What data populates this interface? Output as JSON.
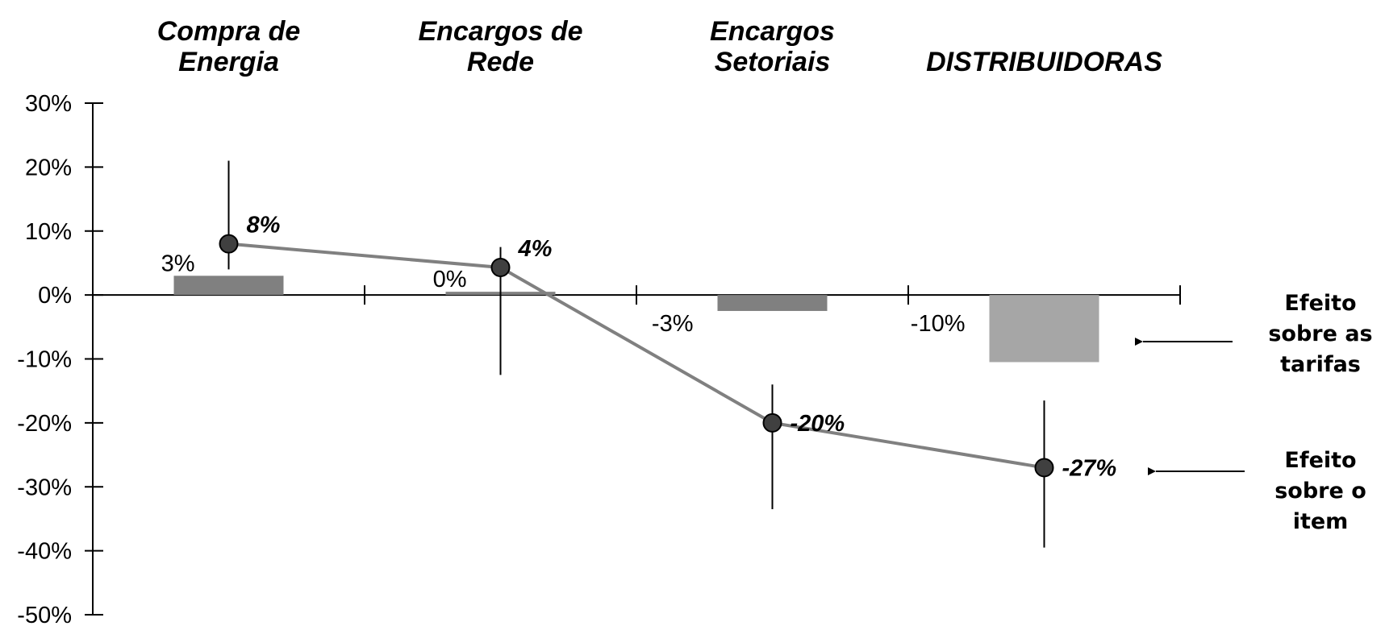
{
  "chart_data": {
    "type": "bar",
    "categories": [
      "Compra de Energia",
      "Encargos de Rede",
      "Encargos Setoriais",
      "DISTRIBUIDORAS"
    ],
    "category_label_lines": [
      [
        "Compra de",
        "Energia"
      ],
      [
        "Encargos de",
        "Rede"
      ],
      [
        "Encargos",
        "Setoriais"
      ],
      [
        "DISTRIBUIDORAS"
      ]
    ],
    "series": [
      {
        "kind": "bar",
        "values": [
          3,
          0.5,
          -2.5,
          -10.5
        ],
        "data_labels": [
          "3%",
          "0%",
          "-3%",
          "-10%"
        ],
        "colors": [
          "#808080",
          "#808080",
          "#808080",
          "#a6a6a6"
        ]
      },
      {
        "kind": "line",
        "values": [
          8,
          4.3,
          -20,
          -27
        ],
        "data_labels": [
          "8%",
          "4%",
          "-20%",
          "-27%"
        ],
        "error_high": [
          21,
          7.5,
          -14,
          -16.5
        ],
        "error_low": [
          4,
          -12.5,
          -33.5,
          -39.5
        ]
      }
    ],
    "ylim": [
      -50,
      30
    ],
    "y_ticks": [
      30,
      20,
      10,
      0,
      -10,
      -20,
      -30,
      -40,
      -50
    ],
    "y_tick_labels": [
      "30%",
      "20%",
      "10%",
      "0%",
      "-10%",
      "-20%",
      "-30%",
      "-40%",
      "-50%"
    ],
    "legend_placement": "right",
    "annotations": [
      {
        "lines": [
          "Efeito",
          "sobre as",
          "tarifas"
        ],
        "points_to": "bars"
      },
      {
        "lines": [
          "Efeito",
          "sobre o",
          "item"
        ],
        "points_to": "line"
      }
    ],
    "colors": {
      "line": "#808080",
      "marker": "#404040",
      "axis": "#000000"
    },
    "grid": false
  }
}
